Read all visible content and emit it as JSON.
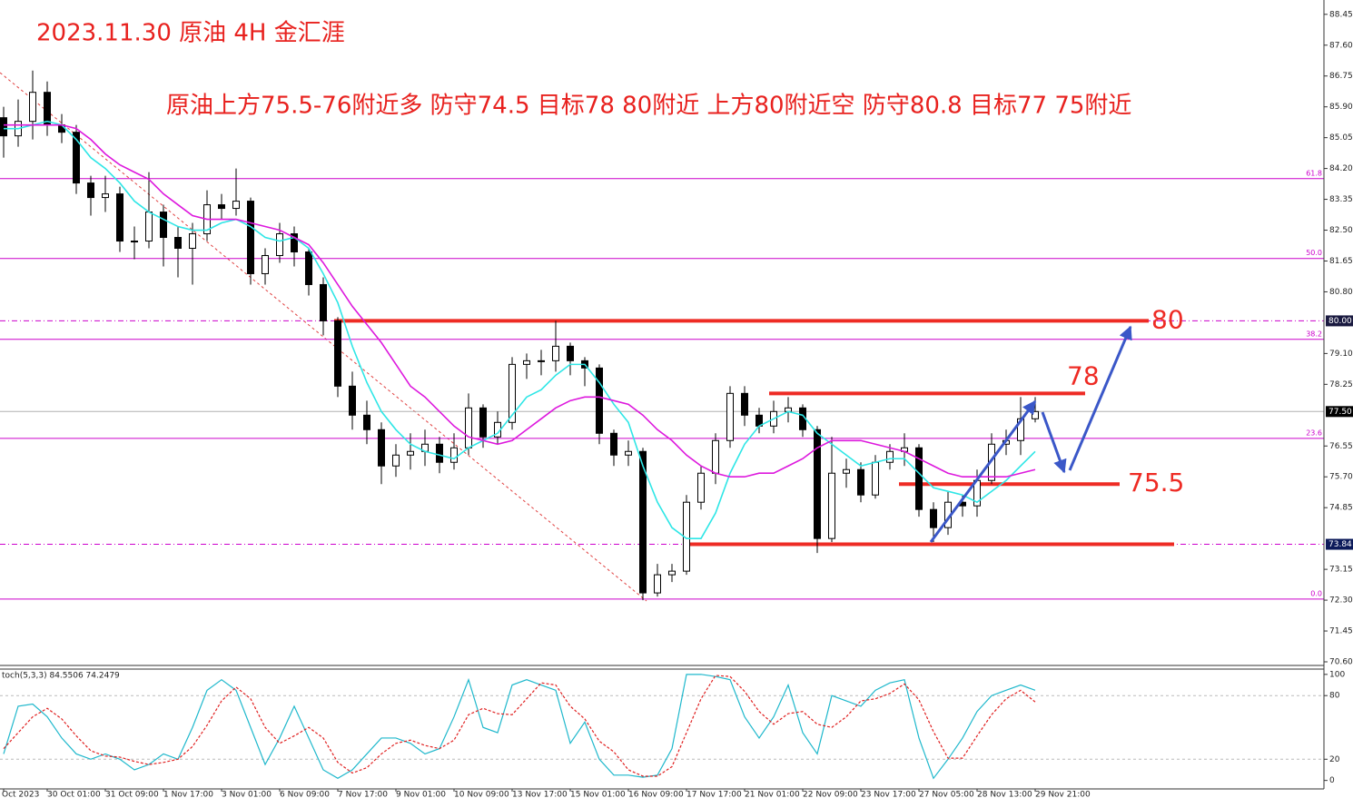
{
  "header": {
    "title": "2023.11.30 原油 4H 金汇涯",
    "plan": "原油上方75.5-76附近多 防守74.5 目标78 80附近 上方80附近空 防守80.8 目标77 75附近"
  },
  "chart_data": [
    {
      "type": "candlestick",
      "ylim": [
        70.5,
        88.72
      ],
      "yticks": [
        88.45,
        {
          "value": 87.6,
          "label": "87.60"
        },
        86.75,
        {
          "value": 85.9,
          "label": "85.90"
        },
        85.05,
        {
          "value": 84.2,
          "label": "84.20"
        },
        83.35,
        {
          "value": 82.5,
          "label": "82.50"
        },
        81.65,
        {
          "value": 80.8,
          "label": "80.80"
        },
        {
          "value": 79.1,
          "label": "79.10"
        },
        78.25,
        76.55,
        {
          "value": 75.7,
          "label": "75.70"
        },
        74.85,
        73.15,
        {
          "value": 72.3,
          "label": "72.30"
        },
        71.45,
        {
          "value": 70.6,
          "label": "70.60"
        }
      ],
      "categories": [
        "Oct 2023",
        null,
        null,
        "30 Oct 01:00",
        null,
        null,
        null,
        "31 Oct 09:00",
        null,
        null,
        null,
        "1 Nov 17:00",
        null,
        null,
        null,
        "3 Nov 01:00",
        null,
        null,
        null,
        "6 Nov 09:00",
        null,
        null,
        null,
        "7 Nov 17:00",
        null,
        null,
        null,
        "9 Nov 01:00",
        null,
        null,
        null,
        "10 Nov 09:00",
        null,
        null,
        null,
        "13 Nov 17:00",
        null,
        null,
        null,
        "15 Nov 01:00",
        null,
        null,
        null,
        "16 Nov 09:00",
        null,
        null,
        null,
        "17 Nov 17:00",
        null,
        null,
        null,
        "21 Nov 01:00",
        null,
        null,
        null,
        "22 Nov 09:00",
        null,
        null,
        null,
        "23 Nov 17:00",
        null,
        null,
        null,
        "27 Nov 05:00",
        null,
        null,
        null,
        "28 Nov 13:00",
        null,
        null,
        null,
        "29 Nov 21:00"
      ],
      "color": "#000000",
      "ohlc": [
        [
          85.6,
          85.9,
          84.5,
          85.1
        ],
        [
          85.1,
          86.1,
          84.8,
          85.5
        ],
        [
          85.5,
          86.9,
          85.0,
          86.3
        ],
        [
          86.3,
          86.6,
          85.1,
          85.4
        ],
        [
          85.4,
          85.7,
          84.9,
          85.2
        ],
        [
          85.2,
          85.4,
          83.5,
          83.8
        ],
        [
          83.8,
          84.0,
          82.9,
          83.4
        ],
        [
          83.4,
          84.0,
          83.0,
          83.5
        ],
        [
          83.5,
          83.7,
          81.9,
          82.2
        ],
        [
          82.2,
          82.6,
          81.7,
          82.2
        ],
        [
          82.2,
          84.1,
          82.0,
          83.0
        ],
        [
          83.0,
          83.2,
          81.5,
          82.3
        ],
        [
          82.3,
          82.6,
          81.2,
          82.0
        ],
        [
          82.0,
          82.7,
          81.0,
          82.4
        ],
        [
          82.4,
          83.6,
          82.2,
          83.2
        ],
        [
          83.2,
          83.5,
          82.8,
          83.1
        ],
        [
          83.1,
          84.2,
          82.9,
          83.3
        ],
        [
          83.3,
          83.4,
          81.0,
          81.3
        ],
        [
          81.3,
          82.0,
          81.0,
          81.8
        ],
        [
          81.8,
          82.7,
          81.6,
          82.4
        ],
        [
          82.4,
          82.6,
          81.5,
          81.9
        ],
        [
          81.9,
          82.0,
          80.7,
          81.0
        ],
        [
          81.0,
          81.2,
          79.6,
          80.0
        ],
        [
          80.0,
          80.1,
          77.9,
          78.2
        ],
        [
          78.2,
          78.6,
          77.0,
          77.4
        ],
        [
          77.4,
          77.8,
          76.6,
          77.0
        ],
        [
          77.0,
          77.2,
          75.5,
          76.0
        ],
        [
          76.0,
          76.6,
          75.7,
          76.3
        ],
        [
          76.3,
          76.9,
          75.9,
          76.4
        ],
        [
          76.4,
          77.0,
          76.0,
          76.6
        ],
        [
          76.6,
          76.8,
          75.8,
          76.1
        ],
        [
          76.1,
          76.9,
          75.9,
          76.5
        ],
        [
          76.5,
          78.0,
          76.3,
          77.6
        ],
        [
          77.6,
          77.7,
          76.5,
          76.8
        ],
        [
          76.8,
          77.5,
          76.6,
          77.2
        ],
        [
          77.2,
          79.0,
          77.0,
          78.8
        ],
        [
          78.8,
          79.1,
          78.4,
          78.9
        ],
        [
          78.9,
          79.2,
          78.5,
          78.9
        ],
        [
          78.9,
          80.0,
          78.6,
          79.3
        ],
        [
          79.3,
          79.4,
          78.5,
          78.9
        ],
        [
          78.9,
          79.0,
          78.2,
          78.7
        ],
        [
          78.7,
          78.8,
          76.6,
          76.9
        ],
        [
          76.9,
          77.0,
          76.0,
          76.3
        ],
        [
          76.3,
          76.7,
          76.0,
          76.4
        ],
        [
          76.4,
          76.5,
          72.3,
          72.5
        ],
        [
          72.5,
          73.3,
          72.4,
          73.0
        ],
        [
          73.0,
          73.3,
          72.8,
          73.1
        ],
        [
          73.1,
          75.2,
          73.0,
          75.0
        ],
        [
          75.0,
          76.0,
          74.8,
          75.8
        ],
        [
          75.8,
          76.9,
          75.5,
          76.7
        ],
        [
          76.7,
          78.2,
          76.5,
          78.0
        ],
        [
          78.0,
          78.2,
          77.1,
          77.4
        ],
        [
          77.4,
          77.6,
          76.9,
          77.1
        ],
        [
          77.1,
          77.8,
          76.9,
          77.5
        ],
        [
          77.5,
          77.9,
          77.2,
          77.6
        ],
        [
          77.6,
          77.7,
          76.8,
          77.0
        ],
        [
          77.0,
          77.1,
          73.6,
          74.0
        ],
        [
          74.0,
          76.8,
          73.9,
          75.8
        ],
        [
          75.8,
          76.2,
          75.4,
          75.9
        ],
        [
          75.9,
          76.1,
          75.0,
          75.2
        ],
        [
          75.2,
          76.3,
          75.1,
          76.1
        ],
        [
          76.1,
          76.6,
          75.9,
          76.4
        ],
        [
          76.4,
          76.9,
          76.0,
          76.5
        ],
        [
          76.5,
          76.6,
          74.6,
          74.8
        ],
        [
          74.8,
          75.0,
          73.9,
          74.3
        ],
        [
          74.3,
          75.3,
          74.1,
          75.0
        ],
        [
          75.0,
          75.2,
          74.6,
          74.9
        ],
        [
          74.9,
          75.9,
          74.6,
          75.6
        ],
        [
          75.6,
          76.9,
          75.5,
          76.6
        ],
        [
          76.6,
          77.0,
          76.3,
          76.7
        ],
        [
          76.7,
          77.9,
          76.3,
          77.3
        ],
        [
          77.3,
          77.9,
          77.2,
          77.5
        ]
      ],
      "series": [
        {
          "color": "#2ee6e6",
          "values": [
            85.3,
            85.3,
            85.4,
            85.5,
            85.4,
            85.0,
            84.5,
            84.2,
            83.8,
            83.3,
            83.0,
            82.8,
            82.6,
            82.5,
            82.5,
            82.7,
            82.8,
            82.6,
            82.3,
            82.2,
            82.3,
            82.0,
            81.3,
            80.5,
            79.3,
            78.3,
            77.5,
            77.0,
            76.6,
            76.4,
            76.3,
            76.2,
            76.5,
            76.7,
            76.9,
            77.4,
            77.9,
            78.1,
            78.5,
            78.8,
            78.8,
            78.3,
            77.7,
            77.2,
            76.0,
            75.0,
            74.3,
            74.0,
            74.0,
            74.7,
            75.8,
            76.6,
            77.1,
            77.3,
            77.5,
            77.4,
            76.9,
            76.6,
            76.3,
            76.0,
            76.1,
            76.2,
            76.2,
            75.8,
            75.4,
            75.3,
            75.2,
            75.0,
            75.3,
            75.6,
            76.0,
            76.4
          ]
        },
        {
          "color": "#dd18dd",
          "values": [
            85.4,
            85.4,
            85.4,
            85.4,
            85.4,
            85.3,
            85.0,
            84.6,
            84.3,
            84.1,
            83.9,
            83.5,
            83.2,
            82.9,
            82.8,
            82.8,
            82.8,
            82.7,
            82.6,
            82.5,
            82.3,
            82.1,
            81.6,
            81.0,
            80.4,
            79.9,
            79.4,
            78.8,
            78.2,
            77.9,
            77.5,
            77.1,
            76.8,
            76.7,
            76.6,
            76.7,
            77.0,
            77.3,
            77.6,
            77.8,
            77.9,
            77.9,
            77.8,
            77.7,
            77.4,
            77.0,
            76.7,
            76.3,
            76.0,
            75.8,
            75.7,
            75.7,
            75.8,
            75.8,
            76.0,
            76.2,
            76.5,
            76.7,
            76.7,
            76.7,
            76.6,
            76.5,
            76.4,
            76.2,
            76.0,
            75.8,
            75.7,
            75.7,
            75.7,
            75.7,
            75.8,
            75.9
          ]
        }
      ],
      "fib_color": "#cc00cc",
      "fib_levels": [
        {
          "value": 83.92,
          "label": "61.8"
        },
        {
          "value": 81.72,
          "label": "50.0"
        },
        {
          "value": 79.49,
          "label": "38.2"
        },
        {
          "value": 76.76,
          "label": "23.6"
        },
        {
          "value": 72.33,
          "label": "0.0"
        }
      ],
      "level_color": "#ee2b24",
      "levels": [
        {
          "value": 80,
          "label": "80"
        },
        {
          "value": 78,
          "label": "78"
        },
        {
          "value": 75.5,
          "label": "75.5"
        }
      ],
      "price_markers": [
        {
          "value": 80,
          "label": "80.00"
        },
        {
          "value": 77.5,
          "label": "77.50"
        },
        {
          "value": 73.84,
          "label": "73.84"
        }
      ]
    },
    {
      "type": "stochastic",
      "title": "toch(5,3,3) 84.5506 74.2479",
      "ylim": [
        -8,
        105
      ],
      "yticks": [
        100,
        80,
        20,
        0
      ],
      "grid_levels": [
        80,
        20
      ],
      "series": [
        {
          "color": "#1fb8cc",
          "values": [
            25,
            70,
            72,
            60,
            40,
            25,
            20,
            25,
            20,
            10,
            15,
            25,
            20,
            50,
            85,
            95,
            85,
            50,
            15,
            40,
            70,
            40,
            10,
            2,
            10,
            25,
            40,
            40,
            35,
            25,
            30,
            60,
            95,
            50,
            45,
            90,
            95,
            90,
            85,
            35,
            55,
            20,
            5,
            5,
            3,
            5,
            30,
            100,
            100,
            98,
            95,
            60,
            40,
            60,
            90,
            45,
            25,
            80,
            75,
            70,
            85,
            92,
            95,
            40,
            2,
            20,
            40,
            65,
            80,
            85,
            90,
            85
          ]
        },
        {
          "color": "#e02020",
          "dashed": true,
          "values": [
            30,
            45,
            60,
            68,
            58,
            42,
            28,
            23,
            22,
            18,
            15,
            17,
            20,
            32,
            52,
            75,
            88,
            77,
            50,
            35,
            42,
            50,
            40,
            17,
            7,
            12,
            25,
            35,
            38,
            33,
            30,
            38,
            62,
            68,
            63,
            62,
            77,
            92,
            90,
            70,
            58,
            37,
            27,
            10,
            4,
            4,
            13,
            45,
            77,
            99,
            98,
            84,
            65,
            53,
            63,
            65,
            53,
            50,
            60,
            75,
            77,
            82,
            91,
            76,
            46,
            21,
            21,
            42,
            62,
            77,
            85,
            74
          ]
        }
      ]
    }
  ]
}
